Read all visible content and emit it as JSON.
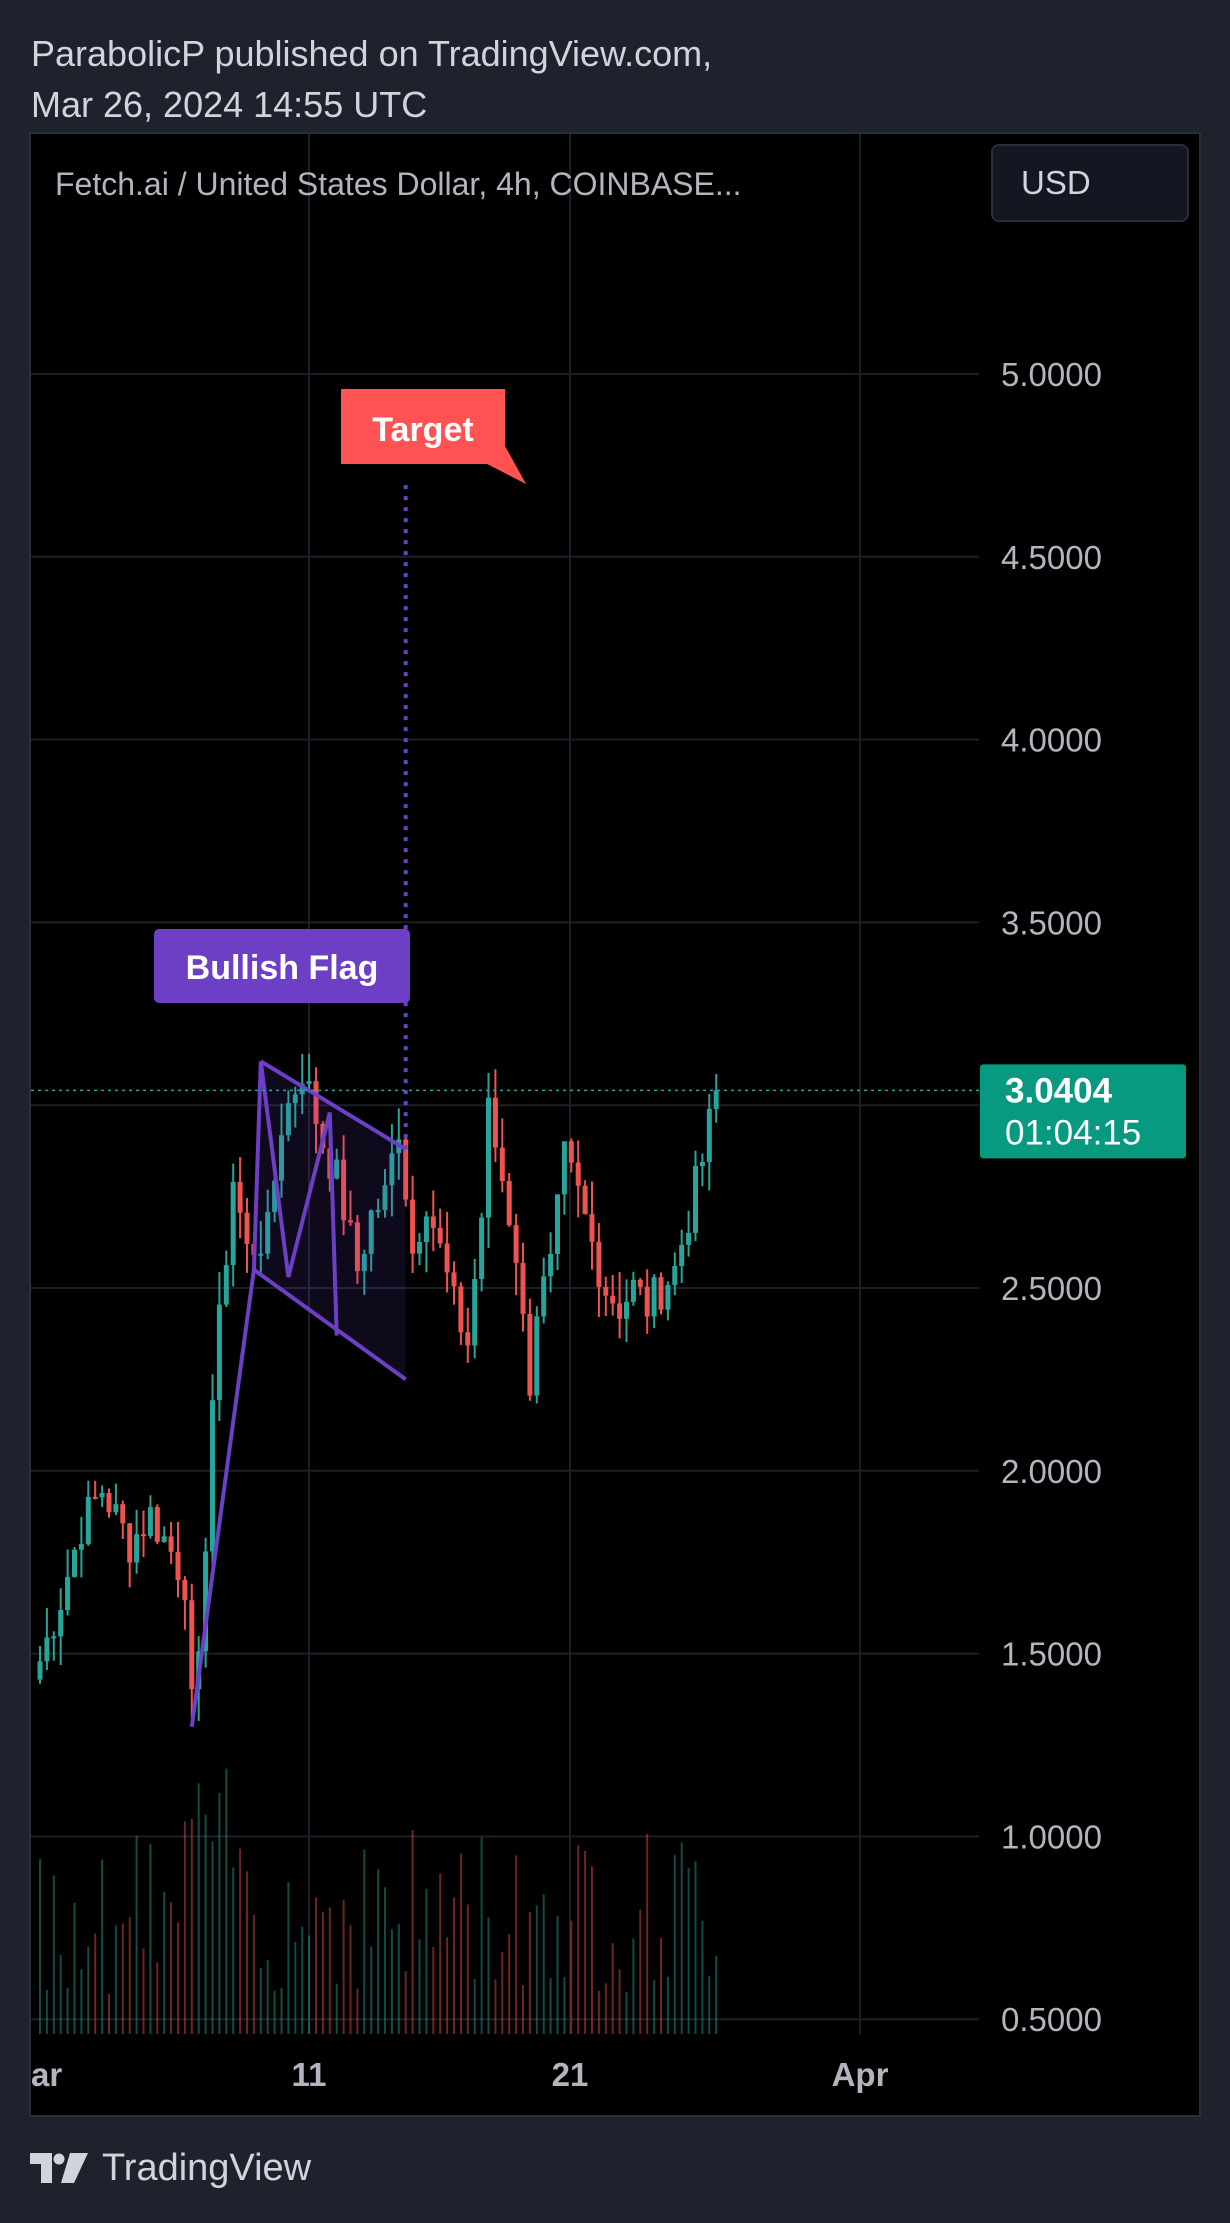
{
  "header": {
    "line1": "ParabolicP published on TradingView.com,",
    "line2": "Mar 26, 2024 14:55 UTC"
  },
  "chart": {
    "title": "Fetch.ai / United States Dollar, 4h, COINBASE...",
    "currency": "USD",
    "price_label": "3.0404",
    "countdown_label": "01:04:15"
  },
  "footer": {
    "brand": "TradingView"
  },
  "colors": {
    "up": "#26a69a",
    "down": "#ef5350",
    "pattern": "#6c3fc4",
    "target": "#ff5252",
    "price_badge": "#089981"
  },
  "chart_data": {
    "type": "candlestick",
    "title": "Fetch.ai / United States Dollar, 4h, COINBASE...",
    "ylim": [
      0.45,
      5.35
    ],
    "y_ticks": [
      5.0,
      4.5,
      4.0,
      3.5,
      3.0,
      2.5,
      2.0,
      1.5,
      1.0,
      0.5
    ],
    "y_tick_labels": [
      "5.0000",
      "4.5000",
      "4.0000",
      "3.5000",
      "",
      "2.5000",
      "2.0000",
      "1.5000",
      "1.0000",
      "0.5000"
    ],
    "x_tick_labels": [
      "Mar",
      "11",
      "21",
      "Apr"
    ],
    "current_price": 3.0404,
    "annotations": [
      {
        "text": "Bullish Flag"
      },
      {
        "text": "Target",
        "price": 4.7
      }
    ],
    "flag_pattern": {
      "pole": [
        {
          "bar": 0,
          "price": 1.3
        },
        {
          "bar": 9,
          "price": 2.55
        }
      ],
      "upper_line": [
        {
          "bar": 10,
          "price": 3.12
        },
        {
          "bar": 31,
          "price": 2.88
        }
      ],
      "lower_line": [
        {
          "bar": 9,
          "price": 2.55
        },
        {
          "bar": 31,
          "price": 2.25
        }
      ]
    },
    "anchors": [
      [
        0,
        1.48
      ],
      [
        3,
        1.65
      ],
      [
        6,
        1.85
      ],
      [
        9,
        1.95
      ],
      [
        13,
        1.8
      ],
      [
        16,
        1.88
      ],
      [
        19,
        1.78
      ],
      [
        21,
        1.7
      ],
      [
        22,
        1.35
      ],
      [
        23,
        1.45
      ],
      [
        25,
        2.2
      ],
      [
        28,
        2.8
      ],
      [
        30,
        2.6
      ],
      [
        33,
        2.65
      ],
      [
        35,
        2.95
      ],
      [
        38,
        3.1
      ],
      [
        41,
        2.9
      ],
      [
        43,
        2.8
      ],
      [
        46,
        2.55
      ],
      [
        48,
        2.7
      ],
      [
        50,
        2.75
      ],
      [
        52,
        2.95
      ],
      [
        54,
        2.6
      ],
      [
        56,
        2.75
      ],
      [
        58,
        2.6
      ],
      [
        60,
        2.45
      ],
      [
        62,
        2.35
      ],
      [
        64,
        2.7
      ],
      [
        65,
        2.98
      ],
      [
        67,
        2.8
      ],
      [
        69,
        2.6
      ],
      [
        70,
        2.4
      ],
      [
        71,
        2.25
      ],
      [
        72,
        2.45
      ],
      [
        74,
        2.55
      ],
      [
        76,
        2.85
      ],
      [
        78,
        2.75
      ],
      [
        80,
        2.62
      ],
      [
        82,
        2.5
      ],
      [
        84,
        2.45
      ],
      [
        86,
        2.5
      ],
      [
        88,
        2.45
      ],
      [
        90,
        2.5
      ],
      [
        92,
        2.55
      ],
      [
        94,
        2.7
      ],
      [
        96,
        2.85
      ],
      [
        98,
        3.04
      ]
    ]
  }
}
